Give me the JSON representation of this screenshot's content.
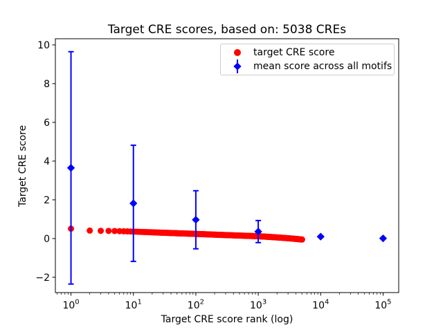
{
  "chart_data": {
    "type": "scatter",
    "title": "Target CRE scores, based on: 5038 CREs",
    "xlabel": "Target CRE score rank (log)",
    "ylabel": "Target CRE score",
    "x_scale": "log",
    "xlim_log10": [
      -0.25,
      5.25
    ],
    "ylim": [
      -2.79,
      10.32
    ],
    "x_tick_exponents": [
      0,
      1,
      2,
      3,
      4,
      5
    ],
    "y_ticks": [
      -2,
      0,
      2,
      4,
      6,
      8,
      10
    ],
    "y_tick_labels": [
      "−2",
      "0",
      "2",
      "4",
      "6",
      "8",
      "10"
    ],
    "grid": false,
    "legend_position": "upper right",
    "colors": {
      "red_series": "#ff0000",
      "blue_series": "#0000ff",
      "axes": "#000000",
      "legend_border": "#cccccc"
    },
    "series": [
      {
        "name": "target CRE score",
        "marker": "circle",
        "color": "#ff0000",
        "n_points": 5038,
        "anchors_rank_score": [
          [
            1,
            0.51
          ],
          [
            2,
            0.41
          ],
          [
            3,
            0.4
          ],
          [
            5,
            0.39
          ],
          [
            10,
            0.36
          ],
          [
            30,
            0.3
          ],
          [
            100,
            0.24
          ],
          [
            300,
            0.18
          ],
          [
            1000,
            0.12
          ],
          [
            2000,
            0.06
          ],
          [
            3500,
            0.0
          ],
          [
            5038,
            -0.05
          ]
        ]
      },
      {
        "name": "mean score across all motifs",
        "marker": "diamond",
        "color": "#0000ff",
        "points": [
          {
            "x": 1,
            "y": 3.65,
            "err": 6.0
          },
          {
            "x": 10,
            "y": 1.82,
            "err": 3.0
          },
          {
            "x": 100,
            "y": 0.97,
            "err": 1.5
          },
          {
            "x": 1000,
            "y": 0.36,
            "err": 0.57
          },
          {
            "x": 10000,
            "y": 0.1,
            "err": 0.04
          },
          {
            "x": 100000,
            "y": 0.01,
            "err": 0.03
          }
        ]
      }
    ],
    "legend": {
      "entries": [
        {
          "label": "target CRE score"
        },
        {
          "label": "mean score across all motifs"
        }
      ]
    }
  }
}
